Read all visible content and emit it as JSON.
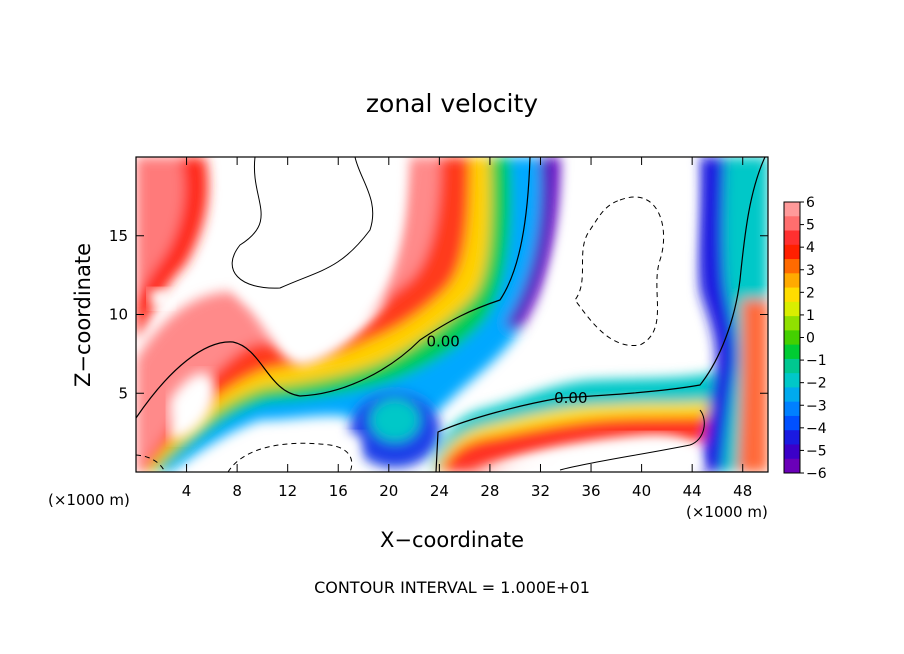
{
  "chart_data": {
    "type": "heatmap",
    "title": "zonal velocity",
    "xlabel": "X−coordinate",
    "ylabel": "Z−coordinate",
    "x_unit_left": "(×1000 m)",
    "x_unit_right": "(×1000 m)",
    "footer": "CONTOUR INTERVAL = 1.000E+01",
    "xlim": [
      0,
      50
    ],
    "ylim": [
      0,
      20
    ],
    "x_ticks": [
      4,
      8,
      12,
      16,
      20,
      24,
      28,
      32,
      36,
      40,
      44,
      48
    ],
    "y_ticks": [
      5,
      10,
      15
    ],
    "contour_labels": [
      {
        "text": "0.00",
        "x": 24.3,
        "y": 8.3
      },
      {
        "text": "0.00",
        "x": 34.4,
        "y": 4.7
      }
    ],
    "colorbar": {
      "labels": [
        "6",
        "5",
        "4",
        "3",
        "2",
        "1",
        "0",
        "−1",
        "−2",
        "−3",
        "−4",
        "−5",
        "−6"
      ],
      "colors": [
        "#ff9a9a",
        "#ff6e6e",
        "#ff3030",
        "#ff2000",
        "#ff6a00",
        "#ffaa00",
        "#ffdd00",
        "#d9ee00",
        "#90e000",
        "#44d000",
        "#00cc33",
        "#00c890",
        "#00c8c8",
        "#00aaee",
        "#0080ff",
        "#0050ff",
        "#1a1ae0",
        "#3b00c8",
        "#6a00b8"
      ]
    }
  }
}
